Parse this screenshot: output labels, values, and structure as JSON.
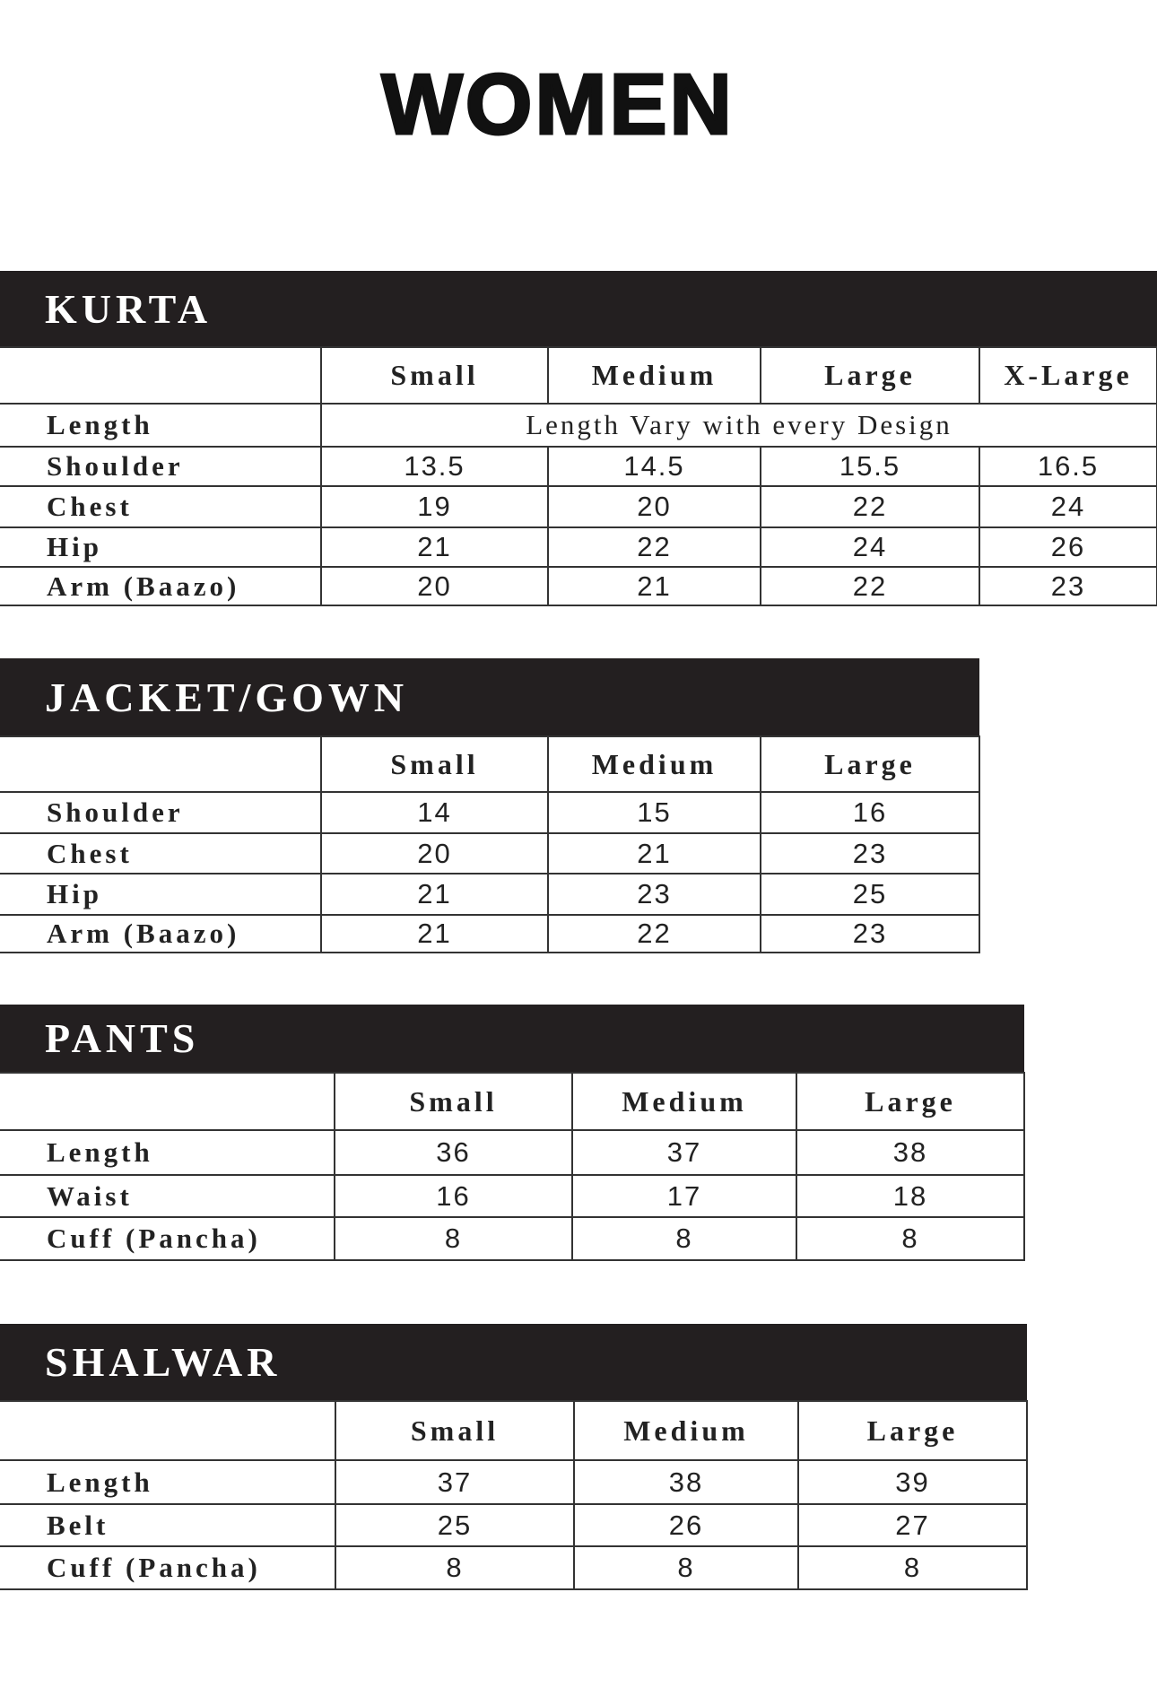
{
  "title": "WOMEN",
  "tables": [
    {
      "name": "KURTA",
      "columns": [
        "",
        "Small",
        "Medium",
        "Large",
        "X-Large"
      ],
      "rows": [
        {
          "label": "Length",
          "note": "Length Vary with every Design"
        },
        {
          "label": "Shoulder",
          "values": [
            "13.5",
            "14.5",
            "15.5",
            "16.5"
          ]
        },
        {
          "label": "Chest",
          "values": [
            "19",
            "20",
            "22",
            "24"
          ]
        },
        {
          "label": "Hip",
          "values": [
            "21",
            "22",
            "24",
            "26"
          ]
        },
        {
          "label": "Arm (Baazo)",
          "values": [
            "20",
            "21",
            "22",
            "23"
          ]
        }
      ]
    },
    {
      "name": "JACKET/GOWN",
      "columns": [
        "",
        "Small",
        "Medium",
        "Large"
      ],
      "rows": [
        {
          "label": "Shoulder",
          "values": [
            "14",
            "15",
            "16"
          ]
        },
        {
          "label": "Chest",
          "values": [
            "20",
            "21",
            "23"
          ]
        },
        {
          "label": "Hip",
          "values": [
            "21",
            "23",
            "25"
          ]
        },
        {
          "label": "Arm (Baazo)",
          "values": [
            "21",
            "22",
            "23"
          ]
        }
      ]
    },
    {
      "name": "PANTS",
      "columns": [
        "",
        "Small",
        "Medium",
        "Large"
      ],
      "rows": [
        {
          "label": "Length",
          "values": [
            "36",
            "37",
            "38"
          ]
        },
        {
          "label": "Waist",
          "values": [
            "16",
            "17",
            "18"
          ]
        },
        {
          "label": "Cuff (Pancha)",
          "values": [
            "8",
            "8",
            "8"
          ]
        }
      ]
    },
    {
      "name": "SHALWAR",
      "columns": [
        "",
        "Small",
        "Medium",
        "Large"
      ],
      "rows": [
        {
          "label": "Length",
          "values": [
            "37",
            "38",
            "39"
          ]
        },
        {
          "label": "Belt",
          "values": [
            "25",
            "26",
            "27"
          ]
        },
        {
          "label": "Cuff (Pancha)",
          "values": [
            "8",
            "8",
            "8"
          ]
        }
      ]
    }
  ]
}
